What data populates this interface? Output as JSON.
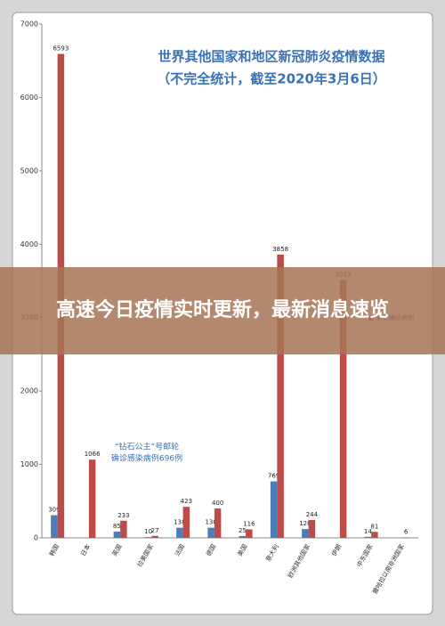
{
  "chart_data": {
    "type": "bar",
    "title": "世界其他国家和地区新冠肺炎疫情数据",
    "subtitle": "（不完全统计，截至2020年3月6日）",
    "annotation": [
      "“钻石公主”号邮轮",
      "确诊感染病例696例"
    ],
    "categories": [
      "韩国",
      "日本",
      "英国",
      "拉美国家",
      "法国",
      "德国",
      "美国",
      "意大利",
      "欧洲其他国家",
      "伊朗",
      "中东国家",
      "撒哈拉以南非洲国家"
    ],
    "series": [
      {
        "color": "#4a7ebb",
        "values": [
          309,
          null,
          85,
          10,
          138,
          138,
          25,
          769,
          120,
          null,
          14,
          null
        ]
      },
      {
        "name": "累计确诊病例",
        "color": "#be4b48",
        "values": [
          6593,
          1066,
          233,
          27,
          423,
          400,
          116,
          3858,
          244,
          3513,
          81,
          6
        ]
      }
    ],
    "ylim": [
      0,
      7000
    ],
    "yticks": [
      0,
      1000,
      2000,
      3000,
      4000,
      5000,
      6000,
      7000
    ],
    "grid": false
  },
  "headline": "高速今日疫情实时更新，最新消息速览"
}
